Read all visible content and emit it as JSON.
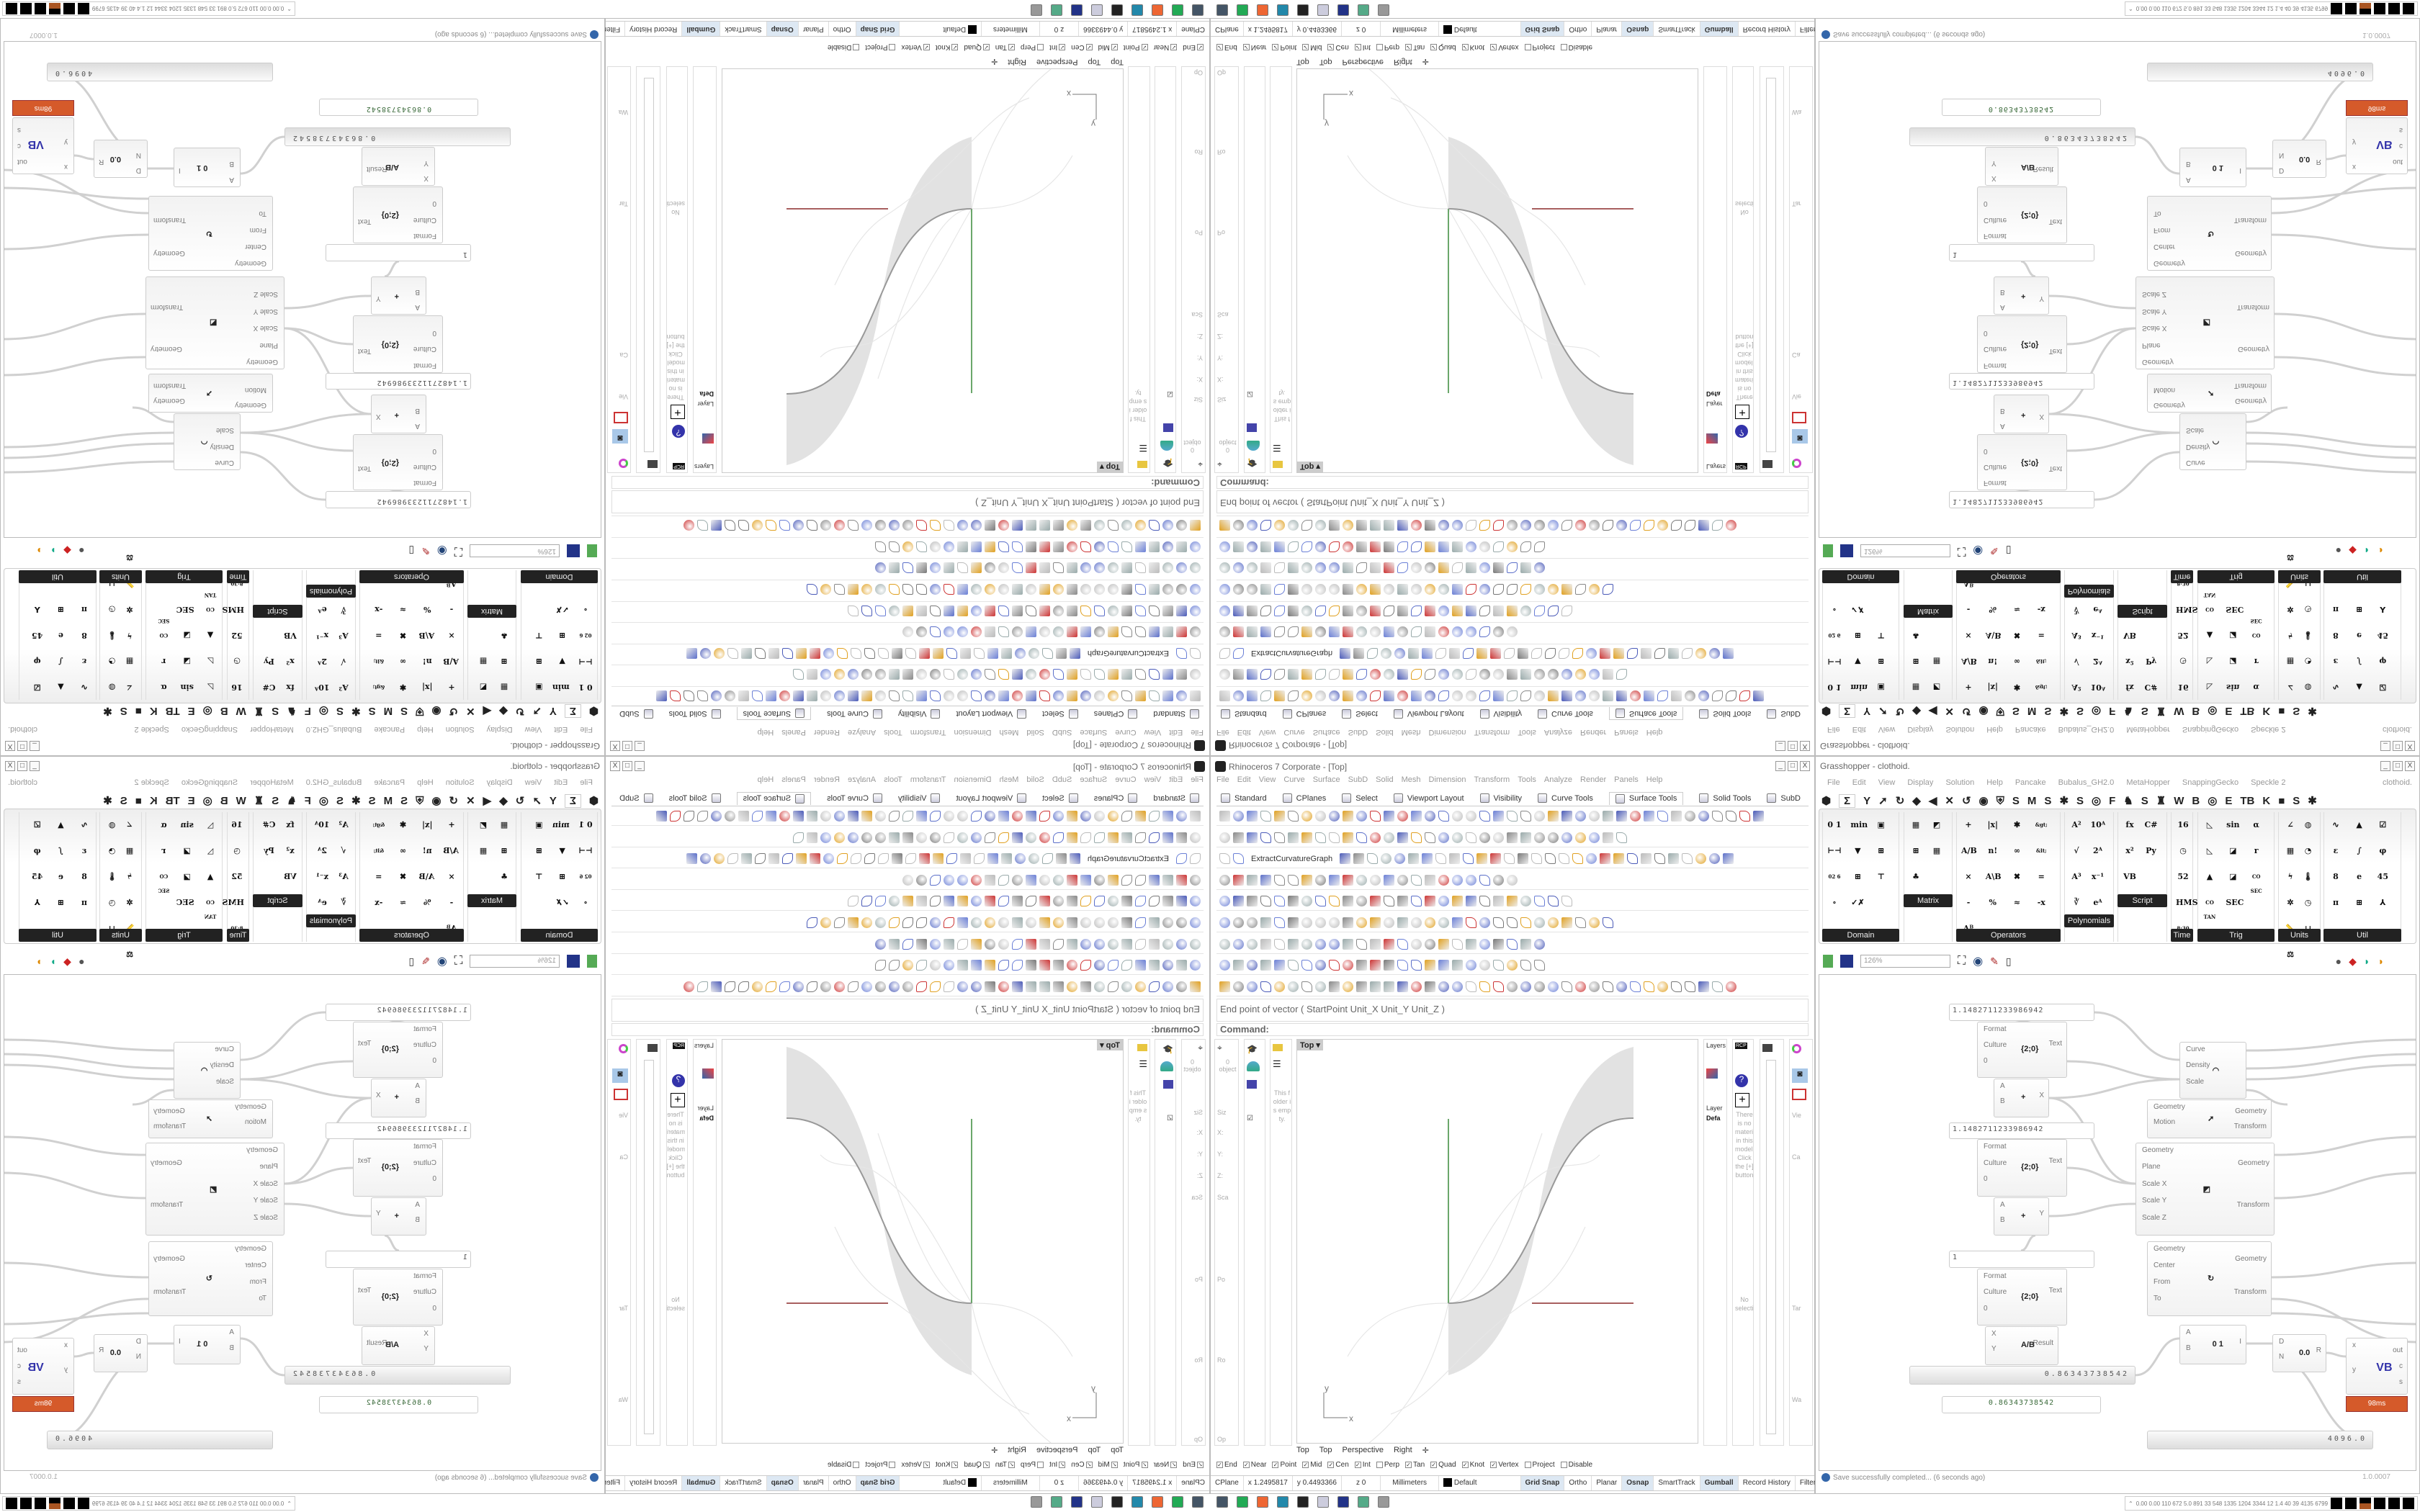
{
  "rhino": {
    "title": "Rhinoceros 7 Corporate - [Top]",
    "menu": [
      "File",
      "Edit",
      "View",
      "Curve",
      "Surface",
      "SubD",
      "Solid",
      "Mesh",
      "Dimension",
      "Transform",
      "Tools",
      "Analyze",
      "Render",
      "Panels",
      "Help"
    ],
    "toolbar_tabs": [
      "Standard",
      "CPlanes",
      "Select",
      "Viewport Layout",
      "Visibility",
      "Curve Tools",
      "Surface Tools",
      "Solid Tools",
      "SubD"
    ],
    "active_tab": "Surface Tools",
    "toolbar_label": "ExtractCurvatureGraph",
    "command_history": "End point of vector ( StartPoint  Unit_X  Unit_Y  Unit_Z )",
    "command_prompt": "Command:",
    "left_panels": {
      "objects": "0 object",
      "size": "Siz",
      "scale": "Sca",
      "position": "Po",
      "rotation": "Ro",
      "options": "Op",
      "x": "X:",
      "y": "Y:",
      "z": "Z:",
      "folder_empty": "This folder is empty."
    },
    "right_panels": {
      "layers": "Layers",
      "layer_col": "Layer",
      "layer_default": "Defa",
      "materials_msg": "There is no material in this model. Click the [+] button",
      "no_selection": "No selection",
      "view": "Vie",
      "camera": "Ca",
      "target": "Tar",
      "walk": "Wa"
    },
    "viewport": {
      "label": "Top",
      "tabs": [
        "Top",
        "Top",
        "Perspective",
        "Right"
      ],
      "axis_x": "x",
      "axis_y": "y",
      "colors": {
        "x_axis": "#8b2a2a",
        "y_axis": "#3a8a3a",
        "surface": "#e2e2e2"
      }
    },
    "osnap": [
      {
        "label": "End",
        "checked": true
      },
      {
        "label": "Near",
        "checked": true
      },
      {
        "label": "Point",
        "checked": true
      },
      {
        "label": "Mid",
        "checked": true
      },
      {
        "label": "Cen",
        "checked": true
      },
      {
        "label": "Int",
        "checked": true
      },
      {
        "label": "Perp",
        "checked": false
      },
      {
        "label": "Tan",
        "checked": true
      },
      {
        "label": "Quad",
        "checked": true
      },
      {
        "label": "Knot",
        "checked": true
      },
      {
        "label": "Vertex",
        "checked": true
      },
      {
        "label": "Project",
        "checked": false
      },
      {
        "label": "Disable",
        "checked": false
      }
    ],
    "status": {
      "cplane": "CPlane",
      "x": "x 1.2495817",
      "y": "y 0.4493366",
      "z": "z 0",
      "units": "Millimeters",
      "layer": "Default",
      "toggles": [
        {
          "label": "Grid Snap",
          "on": true
        },
        {
          "label": "Ortho",
          "on": false
        },
        {
          "label": "Planar",
          "on": false
        },
        {
          "label": "Osnap",
          "on": true
        },
        {
          "label": "SmartTrack",
          "on": false
        },
        {
          "label": "Gumball",
          "on": true
        },
        {
          "label": "Record History",
          "on": false
        },
        {
          "label": "Filter",
          "on": false
        }
      ]
    }
  },
  "grasshopper": {
    "title": "Grasshopper - clothoid.",
    "menu": [
      "File",
      "Edit",
      "View",
      "Display",
      "Solution",
      "Help",
      "Pancake",
      "Bubalus_GH2.0",
      "MetaHopper",
      "SnappingGecko",
      "Speckle 2"
    ],
    "doc_tab": "clothoid.",
    "tabs": [
      "⬢",
      "Σ",
      "Y",
      "➚",
      "↻",
      "◆",
      "◀",
      "✕",
      "↺",
      "◉",
      "⛨",
      "S",
      "M",
      "S",
      "✱",
      "S",
      "◎",
      "F",
      "♞",
      "S",
      "♜",
      "W",
      "B",
      "◎",
      "E",
      "TB",
      "K",
      "■",
      "S",
      "✱"
    ],
    "groups": [
      {
        "label": "Domain",
        "glyphs": [
          "0 1",
          "min",
          "▣",
          "⊢⊣",
          "▼",
          "⊞",
          "02 6",
          "⊞",
          "⊤",
          "∘",
          "✓✗"
        ]
      },
      {
        "label": "Matrix",
        "glyphs": [
          "▦",
          "◩",
          "⊞",
          "▦",
          "♣"
        ]
      },
      {
        "label": "Operators",
        "glyphs": [
          "+",
          "|x|",
          "✱",
          "&gt;",
          "A/B",
          "n!",
          "∞",
          "&lt;",
          "×",
          "A\\B",
          "✖",
          "=",
          "-",
          "%",
          "≈",
          "-x",
          "Aᴮ"
        ]
      },
      {
        "label": "Polynomials",
        "glyphs": [
          "A²",
          "10ᴬ",
          "√",
          "2ᴬ",
          "A³",
          "x⁻¹",
          "∛",
          "eᴬ"
        ]
      },
      {
        "label": "Script",
        "glyphs": [
          "fx",
          "C#",
          "x²",
          "Py",
          "VB"
        ]
      },
      {
        "label": "Time",
        "glyphs": [
          "16",
          "◷",
          "52",
          "HMS",
          "8:30"
        ]
      },
      {
        "label": "Trig",
        "glyphs": [
          "◺",
          "sin",
          "α",
          "◺",
          "◪",
          "r",
          "▲",
          "◪",
          "CO SEC",
          "CO TAN",
          "SEC"
        ]
      },
      {
        "label": "Units",
        "glyphs": [
          "∠",
          "◍",
          "▦",
          "◔",
          "ϟ",
          "🌡",
          "✲",
          "◷",
          "📏",
          "⊔",
          "⚖"
        ]
      },
      {
        "label": "Util",
        "glyphs": [
          "∿",
          "▲",
          "☑",
          "ε",
          "∫",
          "φ",
          "8",
          "e",
          "45",
          "π",
          "⊞",
          "⅄"
        ]
      }
    ],
    "zoom": "126%",
    "components": [
      {
        "type": "panel",
        "text": "1.1482711233986942"
      },
      {
        "type": "node",
        "name": "format",
        "inputs": [
          "Format",
          "Culture",
          "0"
        ],
        "outputs": [
          "Text"
        ],
        "icon": "{2;0}"
      },
      {
        "type": "node",
        "name": "addition",
        "inputs": [
          "A",
          "B"
        ],
        "outputs": [
          "X"
        ],
        "icon": "+"
      },
      {
        "type": "panel",
        "text": "1.1482711233986942"
      },
      {
        "type": "node",
        "name": "format",
        "inputs": [
          "Format",
          "Culture",
          "0"
        ],
        "outputs": [
          "Text"
        ],
        "icon": "{2;0}"
      },
      {
        "type": "node",
        "name": "addition",
        "inputs": [
          "A",
          "B"
        ],
        "outputs": [
          "Y"
        ],
        "icon": "+"
      },
      {
        "type": "panel",
        "text": "1"
      },
      {
        "type": "node",
        "name": "format",
        "inputs": [
          "Format",
          "Culture",
          "0"
        ],
        "outputs": [
          "Text"
        ],
        "icon": "{2;0}"
      },
      {
        "type": "node",
        "name": "division",
        "inputs": [
          "X",
          "Y"
        ],
        "outputs": [
          "Result"
        ],
        "icon": "A/B"
      },
      {
        "type": "slider",
        "text": "0.86343738542"
      },
      {
        "type": "panel",
        "text": "0.86343738542"
      },
      {
        "type": "node",
        "name": "curve-frames",
        "inputs": [
          "Curve",
          "Density",
          "Scale"
        ],
        "outputs": [],
        "icon": "◠"
      },
      {
        "type": "node",
        "name": "move",
        "inputs": [
          "Geometry",
          "Motion"
        ],
        "outputs": [
          "Geometry",
          "Transform"
        ],
        "icon": "➚"
      },
      {
        "type": "node",
        "name": "scale-nu",
        "inputs": [
          "Geometry",
          "Plane",
          "Scale X",
          "Scale Y",
          "Scale Z"
        ],
        "outputs": [
          "Geometry",
          "Transform"
        ],
        "icon": "◩"
      },
      {
        "type": "node",
        "name": "rotate-3d",
        "inputs": [
          "Geometry",
          "Center",
          "From",
          "To"
        ],
        "outputs": [
          "Geometry",
          "Transform"
        ],
        "icon": "↻"
      },
      {
        "type": "node",
        "name": "construct-domain",
        "inputs": [
          "A",
          "B"
        ],
        "outputs": [
          "I"
        ],
        "icon": "0 1"
      },
      {
        "type": "node",
        "name": "divide-domain",
        "inputs": [
          "D",
          "N"
        ],
        "outputs": [
          "R"
        ],
        "icon": "0.0"
      },
      {
        "type": "node",
        "name": "vb-script",
        "inputs": [
          "x",
          "y"
        ],
        "outputs": [
          "out",
          "c",
          "s"
        ],
        "icon": "VB"
      },
      {
        "type": "slider",
        "text": "4096.0"
      }
    ],
    "timing_badge": "98ms",
    "status": "Save successfully completed... (6 seconds ago)",
    "version": "1.0.0007"
  },
  "taskbar": {
    "perf": "0.00 0.00 110 672 5.0 891 33 548 1335 1204 3344 12 1.4 40 39 4135 6799"
  },
  "colors": {
    "accent": "#dde8f3",
    "badge": "#d55a2a",
    "wire": "#d0d0d0"
  }
}
